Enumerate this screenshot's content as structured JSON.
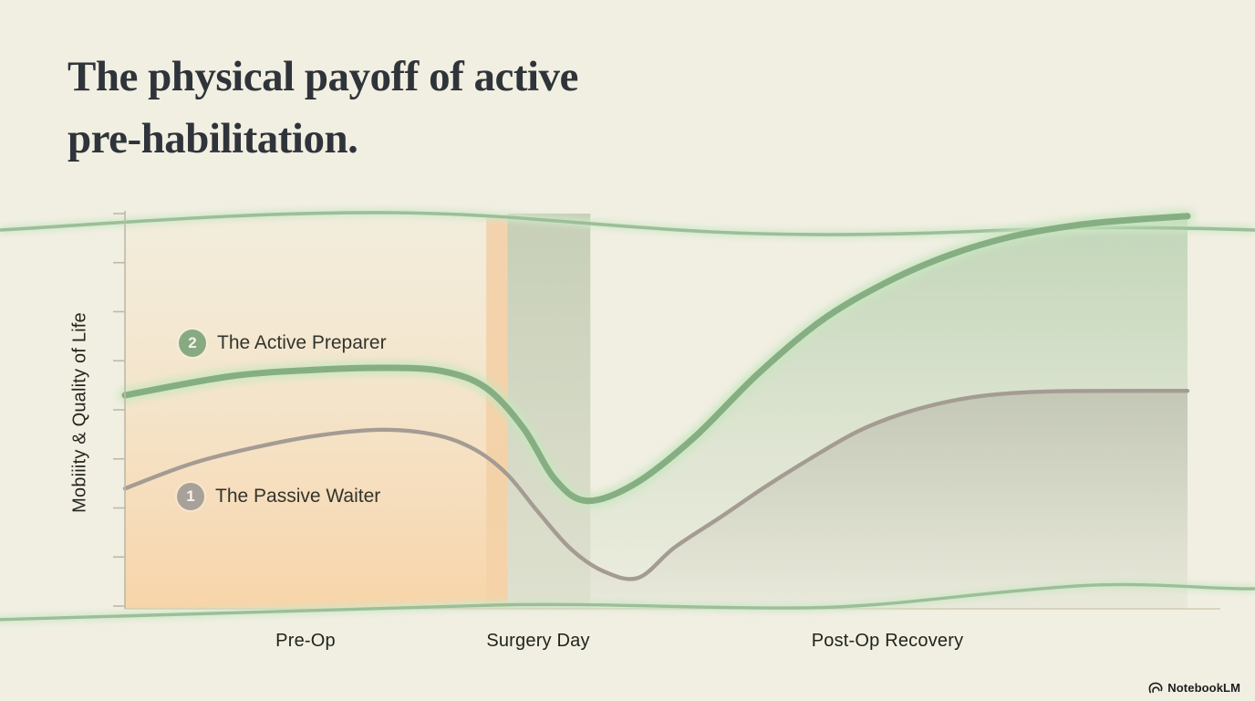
{
  "page": {
    "background": "#f1efe2"
  },
  "header": {
    "title_line1": "The physical payoff of active",
    "title_line2": "pre-habilitation."
  },
  "chart_data": {
    "type": "line",
    "title": "The physical payoff of active pre-habilitation.",
    "xlabel": "",
    "ylabel": "Mobiiity & Quality of Life",
    "x_ticks": [
      "Pre-Op",
      "Surgery Day",
      "Post-Op Recovery"
    ],
    "x_tick_positions_pct": [
      17,
      39,
      71.8
    ],
    "y_axis": {
      "range": [
        0,
        100
      ],
      "tick_count": 9,
      "numeric_labels_shown": false
    },
    "legend_position": "inside-left",
    "grid": false,
    "series": [
      {
        "name": "The Passive Waiter",
        "marker_number": "1",
        "color": "#a49c93",
        "marker_color": "#a7a19a",
        "glow": false,
        "points": [
          [
            0,
            30.3
          ],
          [
            6.3,
            36.6
          ],
          [
            12.3,
            40.7
          ],
          [
            18.3,
            43.7
          ],
          [
            24.3,
            45.1
          ],
          [
            29.4,
            43.7
          ],
          [
            33,
            40
          ],
          [
            36,
            33.8
          ],
          [
            39,
            24
          ],
          [
            42,
            15
          ],
          [
            45,
            9.5
          ],
          [
            48.3,
            7.8
          ],
          [
            51.7,
            15.4
          ],
          [
            56,
            23
          ],
          [
            60.3,
            30.8
          ],
          [
            64.6,
            38
          ],
          [
            68.9,
            44.6
          ],
          [
            73,
            49
          ],
          [
            77.5,
            52.2
          ],
          [
            82,
            54
          ],
          [
            88,
            54.8
          ],
          [
            100,
            54.9
          ]
        ]
      },
      {
        "name": "The Active Preparer",
        "marker_number": "2",
        "color": "#86ae83",
        "marker_color": "#88aa82",
        "glow": true,
        "points": [
          [
            0,
            53.8
          ],
          [
            10,
            58.6
          ],
          [
            18,
            60.2
          ],
          [
            25,
            60.7
          ],
          [
            30,
            59.8
          ],
          [
            34,
            55.6
          ],
          [
            37.5,
            45.5
          ],
          [
            40.5,
            32.5
          ],
          [
            43.5,
            27.2
          ],
          [
            48,
            31.5
          ],
          [
            53.5,
            43
          ],
          [
            59.5,
            59
          ],
          [
            65.5,
            72.5
          ],
          [
            71.5,
            82
          ],
          [
            77.5,
            89
          ],
          [
            83.5,
            93.8
          ],
          [
            89.5,
            96.6
          ],
          [
            94.5,
            97.9
          ],
          [
            100,
            98.9
          ]
        ]
      }
    ],
    "bands": [
      {
        "name": "pre-op-band",
        "x_start": 0,
        "x_end": 34,
        "color": "#f8d5ab"
      },
      {
        "name": "surgery-orange-strip",
        "x_start": 34,
        "x_end": 36,
        "color": "#f5c18c"
      },
      {
        "name": "surgery-green-strip",
        "x_start": 36,
        "x_end": 43.8,
        "color": "#9bb08c"
      }
    ],
    "fills": {
      "start_pct": 43.8,
      "end_pct": 100
    }
  },
  "legend": {
    "active": {
      "number": "2",
      "label": "The Active Preparer"
    },
    "passive": {
      "number": "1",
      "label": "The Passive Waiter"
    }
  },
  "brand": {
    "name": "NotebookLM"
  },
  "palette": {
    "background": "#f1efe2",
    "title_text": "#2f343a",
    "axis": "#bdb9a9",
    "baseline": "#cdc3ab",
    "wave_green": "#9bbf98",
    "active_line": "#86ae83",
    "passive_line": "#a49c93",
    "preop_band_bottom": "#f8d3a6"
  }
}
